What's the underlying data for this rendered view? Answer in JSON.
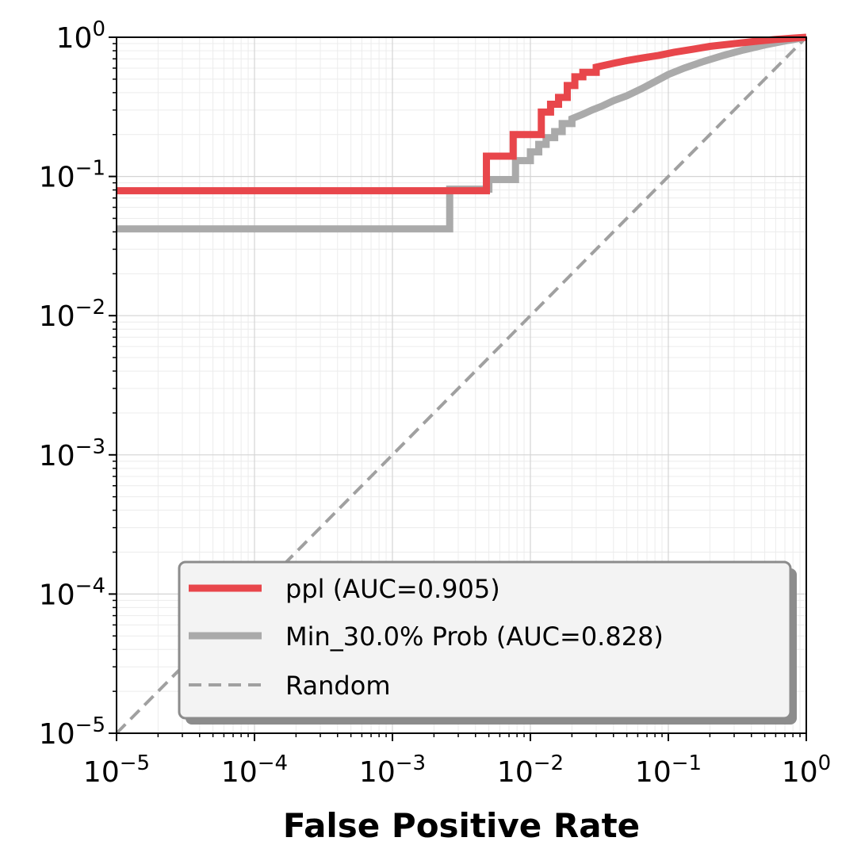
{
  "chart_data": {
    "type": "line",
    "title": "",
    "xlabel": "False Positive Rate",
    "ylabel": "",
    "x_scale": "log",
    "y_scale": "log",
    "xlim": [
      1e-05,
      1
    ],
    "ylim": [
      1e-05,
      1
    ],
    "grid": true,
    "legend_position": "lower-right",
    "x_tick_labels": [
      {
        "base": "10",
        "exp": "−5"
      },
      {
        "base": "10",
        "exp": "−4"
      },
      {
        "base": "10",
        "exp": "−3"
      },
      {
        "base": "10",
        "exp": "−2"
      },
      {
        "base": "10",
        "exp": "−1"
      },
      {
        "base": "10",
        "exp": "0"
      }
    ],
    "y_tick_labels": [
      {
        "base": "10",
        "exp": "−5"
      },
      {
        "base": "10",
        "exp": "−4"
      },
      {
        "base": "10",
        "exp": "−3"
      },
      {
        "base": "10",
        "exp": "−2"
      },
      {
        "base": "10",
        "exp": "−1"
      },
      {
        "base": "10",
        "exp": "0"
      }
    ],
    "series": [
      {
        "name": "ppl (AUC=0.905)",
        "color": "#e8464b",
        "style": "solid",
        "x": [
          1e-05,
          0.0048,
          0.0048,
          0.0075,
          0.0075,
          0.012,
          0.012,
          0.014,
          0.014,
          0.016,
          0.016,
          0.0185,
          0.0185,
          0.021,
          0.021,
          0.024,
          0.024,
          0.03,
          0.03,
          0.04,
          0.05,
          0.065,
          0.085,
          0.11,
          0.15,
          0.2,
          0.3,
          0.45,
          0.6,
          0.8,
          1.0
        ],
        "y": [
          0.079,
          0.079,
          0.14,
          0.14,
          0.2,
          0.2,
          0.29,
          0.29,
          0.33,
          0.33,
          0.37,
          0.37,
          0.45,
          0.45,
          0.52,
          0.52,
          0.56,
          0.56,
          0.61,
          0.65,
          0.68,
          0.71,
          0.74,
          0.78,
          0.82,
          0.86,
          0.9,
          0.94,
          0.965,
          0.985,
          1.0
        ]
      },
      {
        "name": "Min_30.0% Prob (AUC=0.828)",
        "color": "#aaaaaa",
        "style": "solid",
        "x": [
          1e-05,
          0.0026,
          0.0026,
          0.005,
          0.005,
          0.0078,
          0.0078,
          0.01,
          0.01,
          0.0115,
          0.0115,
          0.013,
          0.013,
          0.015,
          0.015,
          0.017,
          0.017,
          0.02,
          0.02,
          0.024,
          0.028,
          0.033,
          0.04,
          0.05,
          0.065,
          0.08,
          0.1,
          0.13,
          0.18,
          0.25,
          0.35,
          0.5,
          0.7,
          1.0
        ],
        "y": [
          0.042,
          0.042,
          0.081,
          0.081,
          0.095,
          0.095,
          0.13,
          0.13,
          0.15,
          0.15,
          0.17,
          0.17,
          0.19,
          0.19,
          0.21,
          0.21,
          0.24,
          0.24,
          0.26,
          0.28,
          0.3,
          0.32,
          0.35,
          0.38,
          0.43,
          0.48,
          0.54,
          0.6,
          0.67,
          0.74,
          0.81,
          0.88,
          0.94,
          1.0
        ]
      },
      {
        "name": "Random",
        "color": "#a0a0a0",
        "style": "dashed",
        "x": [
          1e-05,
          1
        ],
        "y": [
          1e-05,
          1
        ]
      }
    ]
  }
}
